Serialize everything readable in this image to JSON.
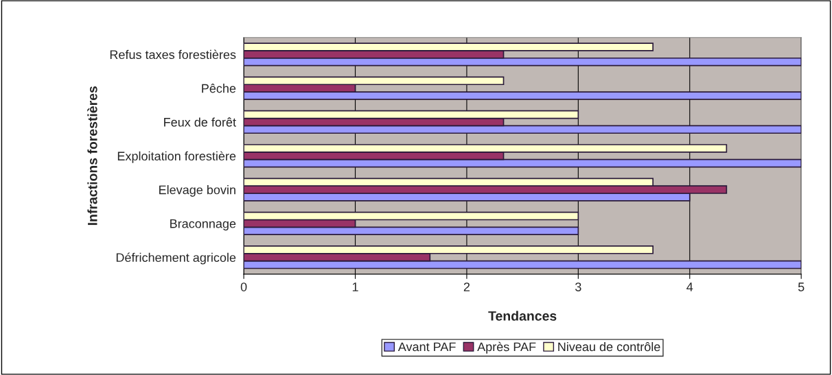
{
  "chart_data": {
    "type": "bar",
    "orientation": "horizontal",
    "xlabel": "Tendances",
    "ylabel": "Infractions forestières",
    "categories": [
      "Refus taxes forestières",
      "Pêche",
      "Feux de forêt",
      "Exploitation forestière",
      "Elevage bovin",
      "Braconnage",
      "Défrichement agricole"
    ],
    "series": [
      {
        "name": "Avant PAF",
        "color": "#9999ff",
        "values": [
          5,
          5,
          5,
          5,
          4,
          3,
          5
        ]
      },
      {
        "name": "Après PAF",
        "color": "#993366",
        "values": [
          2.33,
          1,
          2.33,
          2.33,
          4.33,
          1,
          1.67
        ]
      },
      {
        "name": "Niveau de contrôle",
        "color": "#ffffcc",
        "values": [
          3.67,
          2.33,
          3,
          4.33,
          3.67,
          3,
          3.67
        ]
      }
    ],
    "xlim": [
      0,
      5
    ],
    "xticks": [
      0,
      1,
      2,
      3,
      4,
      5
    ],
    "grid": "x",
    "legend": "bottom"
  }
}
